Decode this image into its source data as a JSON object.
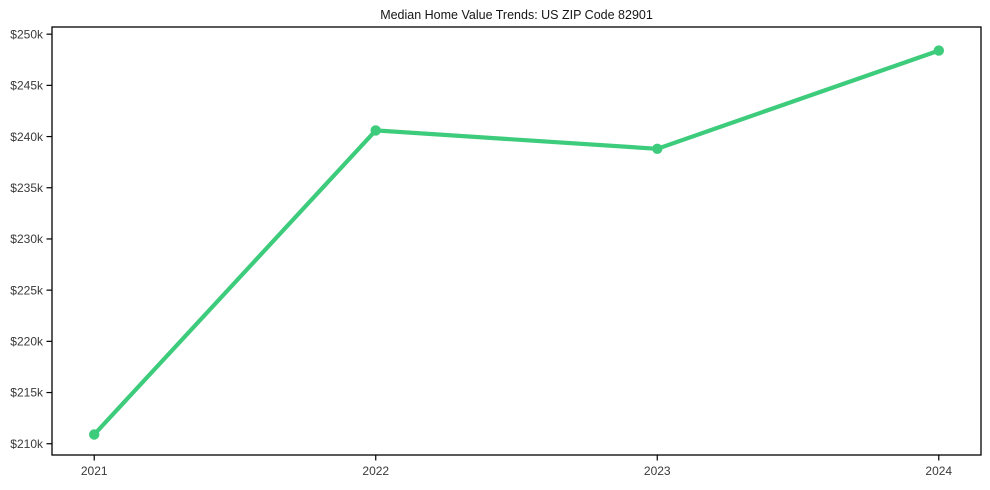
{
  "chart": {
    "title": "Median Home Value Trends: US ZIP Code 82901",
    "background_color": "#ffffff",
    "frame_color": "#000000",
    "tick_label_color": "#3a3a3a",
    "title_color": "#151515"
  },
  "chart_data": {
    "type": "line",
    "title": "Median Home Value Trends: US ZIP Code 82901",
    "categories": [
      "2021",
      "2022",
      "2023",
      "2024"
    ],
    "values": [
      210.9,
      240.6,
      238.8,
      248.4
    ],
    "values_unit": "thousand USD",
    "xlabel": "",
    "ylabel": "",
    "y_ticks": [
      210,
      215,
      220,
      225,
      230,
      235,
      240,
      245,
      250
    ],
    "y_tick_labels": [
      "$210k",
      "$215k",
      "$220k",
      "$225k",
      "$230k",
      "$235k",
      "$240k",
      "$245k",
      "$250k"
    ],
    "ylim": [
      208.9,
      250.7
    ],
    "grid": false,
    "legend": false,
    "line_color": "#3dcb7c",
    "marker": "circle"
  }
}
